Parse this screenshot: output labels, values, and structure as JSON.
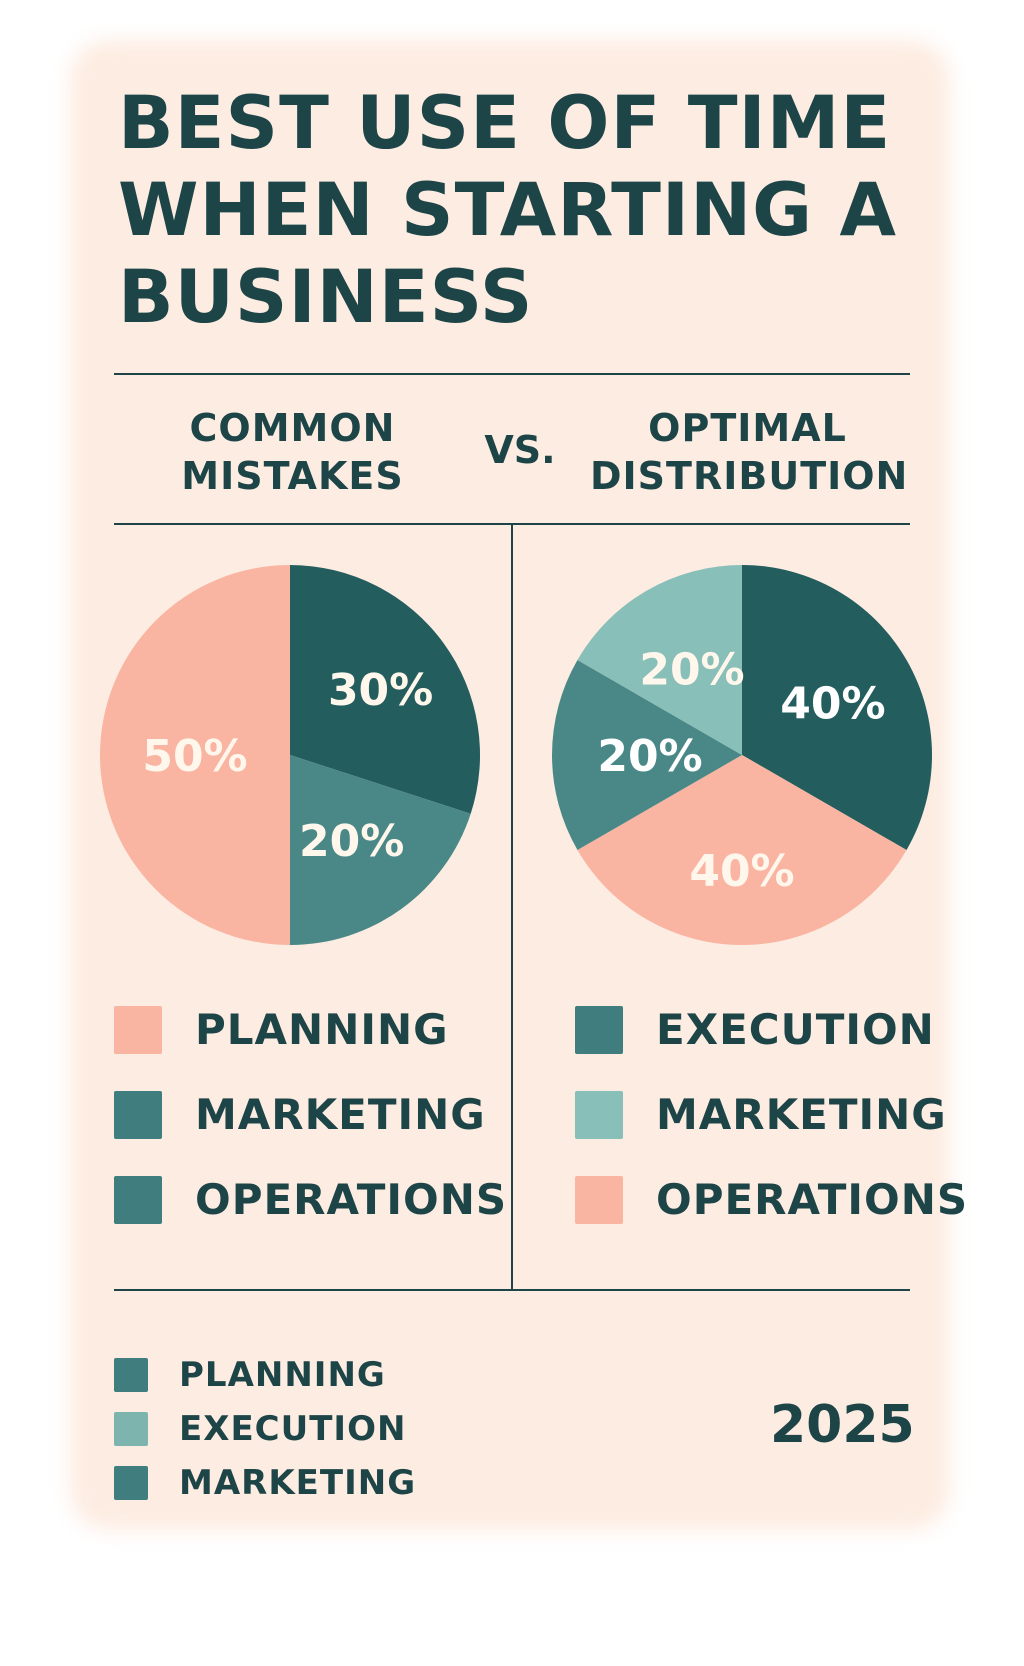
{
  "title": "BEST USE OF TIME WHEN STARTING A BUSINESS",
  "headers": {
    "left_line1": "COMMON",
    "left_line2": "MISTAKES",
    "vs": "VS.",
    "right_line1": "OPTIMAL",
    "right_line2": "DISTRIBUTION"
  },
  "chart_data": [
    {
      "type": "pie",
      "title": "",
      "slices": [
        {
          "label": "",
          "value": 30,
          "display": "30%",
          "color": "#235d5e",
          "text_color": "#fff7ec"
        },
        {
          "label": "",
          "value": 20,
          "display": "20%",
          "color": "#4a8888",
          "text_color": "#fff7ec"
        },
        {
          "label": "",
          "value": 50,
          "display": "50%",
          "color": "#f9b5a2",
          "text_color": "#fff7ec"
        }
      ],
      "legend": [
        {
          "label": "PLANNING",
          "color": "#f9b5a2"
        },
        {
          "label": "MARKETING",
          "color": "#3f7d7e"
        },
        {
          "label": "OPERATIONS",
          "color": "#3f7d7e"
        }
      ]
    },
    {
      "type": "pie",
      "title": "",
      "slices": [
        {
          "label": "",
          "value": 40,
          "display": "40%",
          "color": "#235d5e",
          "text_color": "#ffffff"
        },
        {
          "label": "",
          "value": 40,
          "display": "40%",
          "color": "#f9b5a2",
          "text_color": "#fff7ec"
        },
        {
          "label": "",
          "value": 20,
          "display": "20%",
          "color": "#4a8888",
          "text_color": "#ffffff"
        },
        {
          "label": "",
          "value": 20,
          "display": "20%",
          "color": "#88bfb9",
          "text_color": "#fff7ec"
        }
      ],
      "legend": [
        {
          "label": "EXECUTION",
          "color": "#3f7d7e"
        },
        {
          "label": "MARKETING",
          "color": "#88bfb9"
        },
        {
          "label": "OPERATIONS",
          "color": "#f9b5a2"
        }
      ]
    }
  ],
  "bottom_legend": [
    {
      "label": "PLANNING",
      "color": "#3f7d7e"
    },
    {
      "label": "EXECUTION",
      "color": "#7db4ae"
    },
    {
      "label": "MARKETING",
      "color": "#3f7d7e"
    }
  ],
  "year": "2025"
}
